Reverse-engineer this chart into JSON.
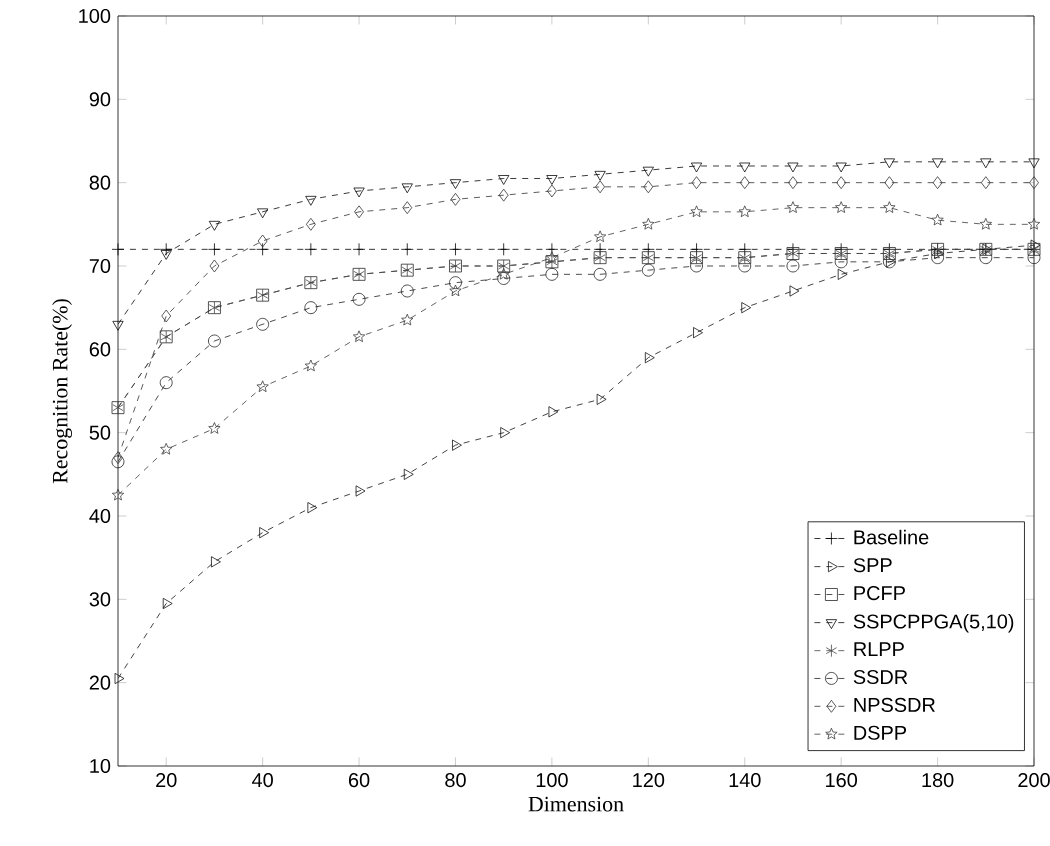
{
  "chart_data": {
    "type": "line",
    "xlabel": "Dimension",
    "ylabel": "Recognition Rate(%)",
    "x": [
      10,
      20,
      30,
      40,
      50,
      60,
      70,
      80,
      90,
      100,
      110,
      120,
      130,
      140,
      150,
      160,
      170,
      180,
      190,
      200
    ],
    "xlim": [
      10,
      200
    ],
    "ylim": [
      10,
      100
    ],
    "xticks": [
      20,
      40,
      60,
      80,
      100,
      120,
      140,
      160,
      180,
      200
    ],
    "yticks": [
      10,
      20,
      30,
      40,
      50,
      60,
      70,
      80,
      90,
      100
    ],
    "grid": false,
    "legend": "bottom right",
    "line_style": "dashed",
    "series": [
      {
        "name": "Baseline",
        "color": "#000000",
        "marker": "plus",
        "values": [
          72,
          72,
          72,
          72,
          72,
          72,
          72,
          72,
          72,
          72,
          72,
          72,
          72,
          72,
          72,
          72,
          72,
          72,
          72,
          72
        ]
      },
      {
        "name": "SPP",
        "color": "#141414",
        "marker": "triangle-right",
        "values": [
          20.5,
          29.5,
          34.5,
          38,
          41,
          43,
          45,
          48.5,
          50,
          52.5,
          54,
          59,
          62,
          65,
          67,
          69,
          70.5,
          71.5,
          72,
          72.5
        ]
      },
      {
        "name": "PCFP",
        "color": "#282828",
        "marker": "square",
        "values": [
          53,
          61.5,
          65,
          66.5,
          68,
          69,
          69.5,
          70,
          70,
          70.5,
          71,
          71,
          71,
          71,
          71.5,
          71.5,
          71.5,
          72,
          72,
          72
        ]
      },
      {
        "name": "SSPCPPGA(5,10)",
        "color": "#0a0a0a",
        "marker": "triangle-down",
        "values": [
          63,
          71.5,
          75,
          76.5,
          78,
          79,
          79.5,
          80,
          80.5,
          80.5,
          81,
          81.5,
          82,
          82,
          82,
          82,
          82.5,
          82.5,
          82.5,
          82.5
        ]
      },
      {
        "name": "RLPP",
        "color": "#464646",
        "marker": "cross",
        "values": [
          53,
          61.5,
          65,
          66.5,
          68,
          69,
          69.5,
          70,
          70,
          70.5,
          71,
          71,
          71,
          71,
          71.5,
          71.5,
          71.5,
          72,
          72,
          72
        ]
      },
      {
        "name": "SSDR",
        "color": "#1e1e1e",
        "marker": "circle",
        "values": [
          46.5,
          56,
          61,
          63,
          65,
          66,
          67,
          68,
          68.5,
          69,
          69,
          69.5,
          70,
          70,
          70,
          70.5,
          70.5,
          71,
          71,
          71
        ]
      },
      {
        "name": "NPSSDR",
        "color": "#323232",
        "marker": "diamond",
        "values": [
          47,
          64,
          70,
          73,
          75,
          76.5,
          77,
          78,
          78.5,
          79,
          79.5,
          79.5,
          80,
          80,
          80,
          80,
          80,
          80,
          80,
          80
        ]
      },
      {
        "name": "DSPP",
        "color": "#3c3c3c",
        "marker": "star",
        "values": [
          42.5,
          48,
          50.5,
          55.5,
          58,
          61.5,
          63.5,
          67,
          69,
          71,
          73.5,
          75,
          76.5,
          76.5,
          77,
          77,
          77,
          75.5,
          75,
          75
        ]
      }
    ]
  }
}
